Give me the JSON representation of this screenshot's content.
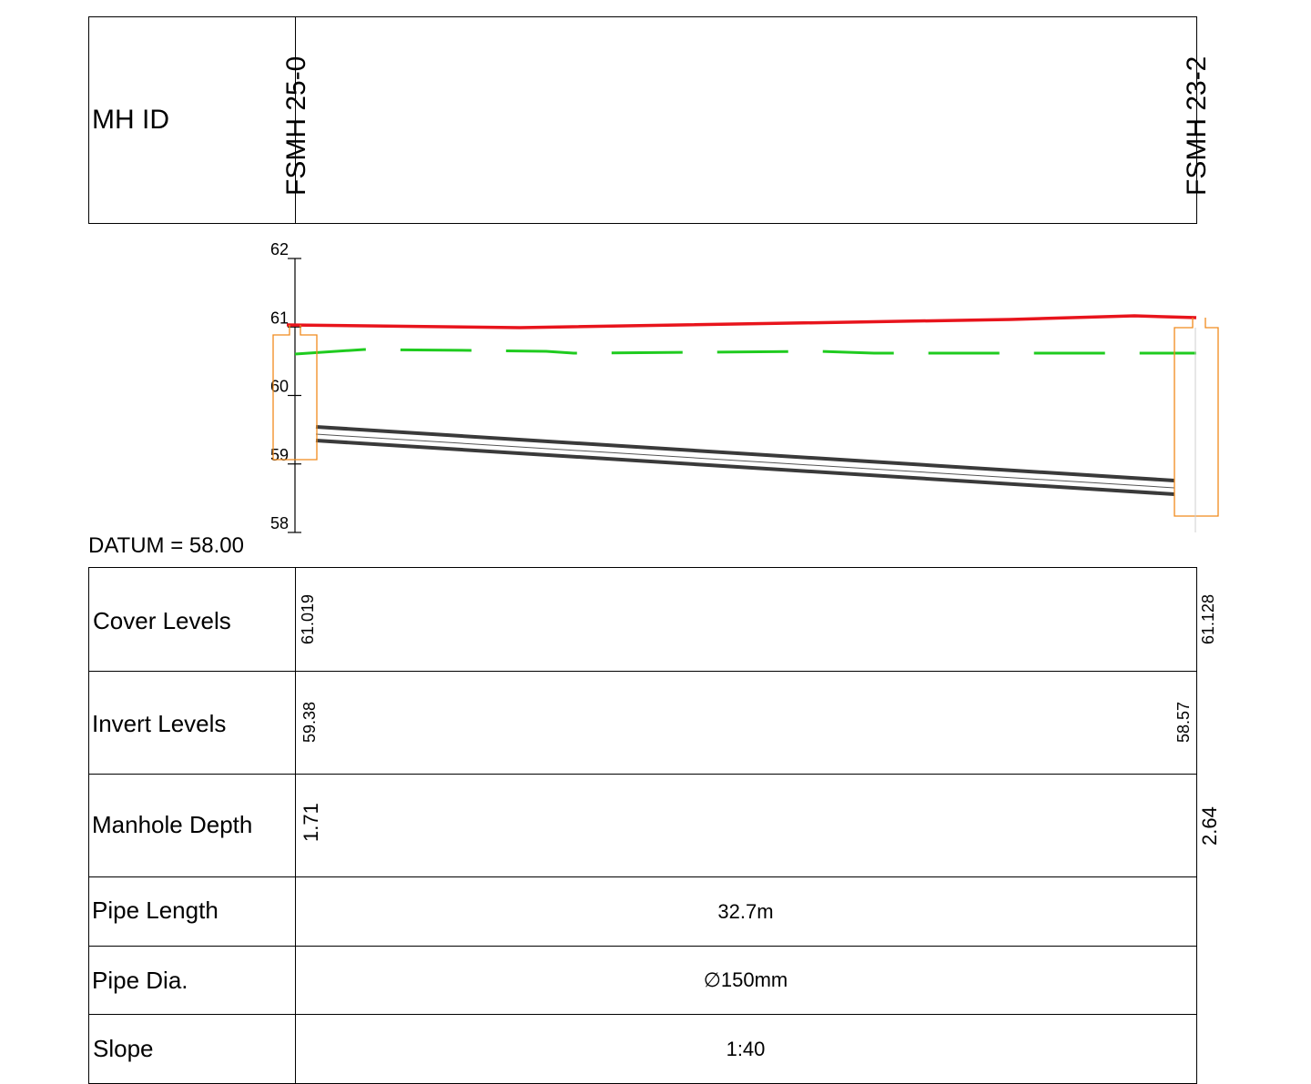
{
  "header": {
    "label": "MH ID",
    "start_manhole": "FSMH 25-0",
    "end_manhole": "FSMH 23-2"
  },
  "profile": {
    "y_ticks": [
      "62",
      "61",
      "60",
      "59",
      "58"
    ],
    "datum_label": "DATUM = 58.00",
    "colors": {
      "ground_line": "#e8141c",
      "water_line": "#1fcb1f",
      "pipe": "#3a3a3a",
      "manhole": "#f08a1c"
    }
  },
  "chart_data": {
    "type": "line",
    "ylim": [
      58,
      62
    ],
    "x_range_m": [
      0,
      32.7
    ],
    "series": [
      {
        "values": [
          [
            0,
            61.019
          ],
          [
            32.7,
            61.128
          ]
        ]
      },
      {
        "values": [
          [
            0,
            59.38
          ],
          [
            32.7,
            58.57
          ]
        ]
      }
    ]
  },
  "table": {
    "rows": [
      {
        "label": "Cover Levels",
        "start": "61.019",
        "end": "61.128"
      },
      {
        "label": "Invert Levels",
        "start": "59.38",
        "end": "58.57"
      },
      {
        "label": "Manhole Depth",
        "start": "1.71",
        "end": "2.64"
      },
      {
        "label": "Pipe Length",
        "value": "32.7m"
      },
      {
        "label": "Pipe Dia.",
        "value": "∅150mm"
      },
      {
        "label": "Slope",
        "value": "1:40"
      }
    ]
  }
}
